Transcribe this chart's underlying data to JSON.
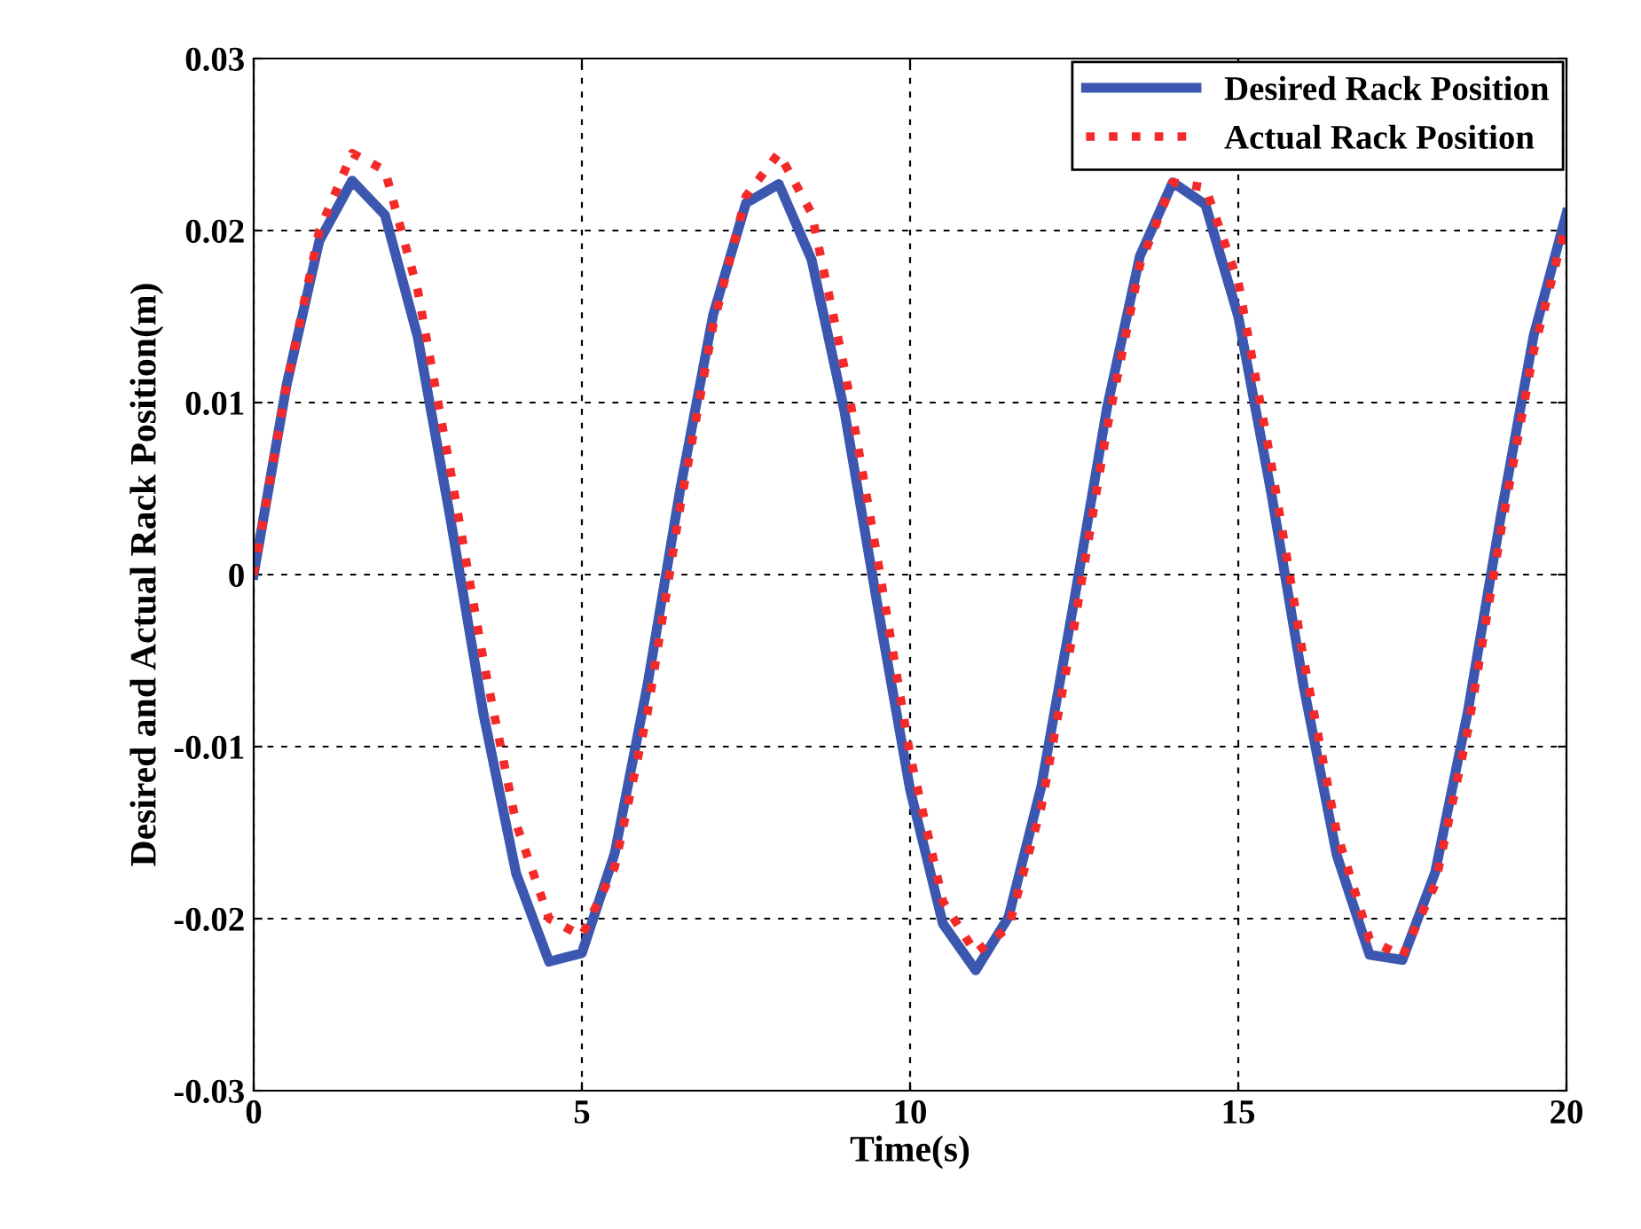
{
  "chart_data": {
    "type": "line",
    "xlabel": "Time(s)",
    "ylabel": "Desired and Actual Rack Position(m)",
    "x": [
      0,
      0.5,
      1,
      1.5,
      2,
      2.5,
      3,
      3.5,
      4,
      4.5,
      5,
      5.5,
      6,
      6.5,
      7,
      7.5,
      8,
      8.5,
      9,
      9.5,
      10,
      10.5,
      11,
      11.5,
      12,
      12.5,
      13,
      13.5,
      14,
      14.5,
      15,
      15.5,
      16,
      16.5,
      17,
      17.5,
      18,
      18.5,
      19,
      19.5,
      20
    ],
    "series": [
      {
        "name": "Desired Rack Position",
        "color": "#3b57b0",
        "line_style": "solid",
        "values": [
          0,
          0.011,
          0.0194,
          0.0229,
          0.0209,
          0.0138,
          0.0032,
          -0.0081,
          -0.0174,
          -0.0225,
          -0.022,
          -0.0162,
          -0.0064,
          0.005,
          0.0151,
          0.0216,
          0.0227,
          0.0183,
          0.0095,
          -0.0017,
          -0.0125,
          -0.0203,
          -0.023,
          -0.0199,
          -0.0123,
          -0.0015,
          0.0097,
          0.0185,
          0.0228,
          0.0215,
          0.015,
          0.0048,
          -0.0066,
          -0.0163,
          -0.0221,
          -0.0224,
          -0.0173,
          -0.0079,
          0.0034,
          0.0139,
          0.021
        ]
      },
      {
        "name": "Actual Rack Position",
        "color": "#f42a2a",
        "line_style": "dotted",
        "values": [
          0,
          0.011,
          0.02,
          0.0245,
          0.0235,
          0.0165,
          0.006,
          -0.005,
          -0.0145,
          -0.02,
          -0.021,
          -0.017,
          -0.008,
          0.004,
          0.0145,
          0.022,
          0.0245,
          0.021,
          0.012,
          0.001,
          -0.0105,
          -0.019,
          -0.022,
          -0.0205,
          -0.0135,
          -0.003,
          0.0085,
          0.018,
          0.0228,
          0.0225,
          0.017,
          0.0065,
          -0.005,
          -0.015,
          -0.0212,
          -0.0222,
          -0.018,
          -0.009,
          0.0025,
          0.013,
          0.0205
        ]
      }
    ],
    "xlim": [
      0,
      20
    ],
    "xticks": [
      0,
      5,
      10,
      15,
      20
    ],
    "ylim": [
      -0.03,
      0.03
    ],
    "yticks": [
      -0.03,
      -0.02,
      -0.01,
      0,
      0.01,
      0.02,
      0.03
    ],
    "grid": true,
    "legend": "top right"
  }
}
